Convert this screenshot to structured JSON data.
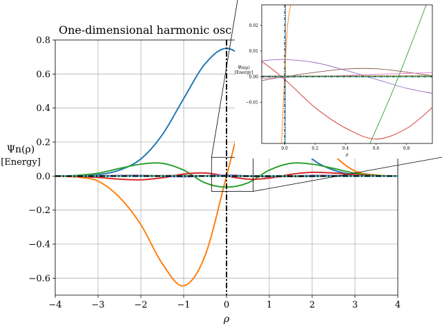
{
  "chart_data": [
    {
      "id": "main",
      "type": "line",
      "title": "One-dimensional harmonic osc",
      "xlabel": "ρ",
      "ylabel_line1": "Ψn(ρ)",
      "ylabel_line2": "[Energy]",
      "xlim": [
        -4,
        4
      ],
      "ylim": [
        -0.7,
        0.8
      ],
      "xticks": [
        -4,
        -3,
        -2,
        -1,
        0,
        1,
        2,
        3,
        4
      ],
      "xtick_labels": [
        "−4",
        "−3",
        "−2",
        "−1",
        "0",
        "1",
        "2",
        "3",
        "4"
      ],
      "yticks": [
        -0.6,
        -0.4,
        -0.2,
        0.0,
        0.2,
        0.4,
        0.6,
        0.8
      ],
      "ytick_labels": [
        "−0.6",
        "−0.4",
        "−0.2",
        "0.0",
        "0.2",
        "0.4",
        "0.6",
        "0.8"
      ],
      "grid": true,
      "colors": [
        "#1f77b4",
        "#ff7f0e",
        "#2ca02c",
        "#d62728",
        "#9467bd",
        "#8c564b",
        "#e377c2",
        "#7f7f7f",
        "#bcbd22",
        "#17becf"
      ],
      "series": [
        {
          "x": [
            -4,
            -3.5,
            -3,
            -2.5,
            -2,
            -1.5,
            -1,
            -0.5,
            0,
            0.5,
            1,
            1.5,
            2,
            2.5,
            3,
            3.5,
            4
          ],
          "y": [
            0.0,
            0.001,
            0.008,
            0.035,
            0.101,
            0.243,
            0.456,
            0.66,
            0.751,
            0.66,
            0.456,
            0.243,
            0.101,
            0.035,
            0.008,
            0.001,
            0.0
          ]
        },
        {
          "x": [
            -4,
            -3.5,
            -3,
            -2.5,
            -2,
            -1.5,
            -1,
            -0.5,
            0,
            0.5,
            1,
            1.5,
            2,
            2.5,
            3,
            3.5,
            4
          ],
          "y": [
            -0.001,
            -0.006,
            -0.03,
            -0.125,
            -0.286,
            -0.515,
            -0.645,
            -0.467,
            0.0,
            0.467,
            0.645,
            0.515,
            0.286,
            0.125,
            0.03,
            0.006,
            0.001
          ]
        },
        {
          "x": [
            -4,
            -3.5,
            -3,
            -2.5,
            -2,
            -1.5,
            -1,
            -0.5,
            0,
            0.5,
            1,
            1.5,
            2,
            2.5,
            3,
            3.5,
            4
          ],
          "y": [
            0.0,
            0.004,
            0.017,
            0.045,
            0.07,
            0.075,
            0.035,
            -0.04,
            -0.065,
            -0.04,
            0.035,
            0.075,
            0.07,
            0.045,
            0.017,
            0.004,
            0.0
          ]
        },
        {
          "x": [
            -4,
            -3.5,
            -3,
            -2.5,
            -2,
            -1.5,
            -1,
            -0.5,
            0,
            0.5,
            1,
            1.5,
            2,
            2.5,
            3,
            3.5,
            4
          ],
          "y": [
            0.0,
            -0.002,
            -0.008,
            -0.018,
            -0.022,
            -0.01,
            0.012,
            0.018,
            0.0,
            -0.018,
            -0.012,
            0.01,
            0.022,
            0.018,
            0.008,
            0.002,
            0.0
          ]
        },
        {
          "x": [
            -4,
            -3,
            -2,
            -1,
            0,
            1,
            2,
            3,
            4
          ],
          "y": [
            0.0,
            0.002,
            0.004,
            -0.004,
            0.006,
            -0.004,
            0.004,
            0.002,
            0.0
          ]
        },
        {
          "x": [
            -4,
            -3,
            -2,
            -1,
            0,
            1,
            2,
            3,
            4
          ],
          "y": [
            0.0,
            -0.001,
            0.002,
            0.003,
            0.0,
            -0.003,
            -0.002,
            0.001,
            0.0
          ]
        },
        {
          "x": [
            -4,
            4
          ],
          "y": [
            0.0,
            0.0
          ]
        },
        {
          "x": [
            -4,
            4
          ],
          "y": [
            0.0,
            0.0
          ]
        },
        {
          "x": [
            -4,
            4
          ],
          "y": [
            0.0,
            0.0
          ]
        },
        {
          "x": [
            -4,
            4
          ],
          "y": [
            0.0,
            0.0
          ]
        }
      ],
      "overlay_dashed": {
        "x": [
          -4,
          4
        ],
        "y": [
          0.0,
          0.0
        ],
        "color": "#000000",
        "style": "dashdot"
      },
      "vline_dashdot": {
        "x": 0,
        "color": "#000000"
      },
      "zoom_box": {
        "xlim": [
          -0.35,
          0.62
        ],
        "ylim": [
          -0.09,
          0.11
        ]
      }
    },
    {
      "id": "inset",
      "type": "line",
      "xlabel": "ρ",
      "ylabel_line1": "Ψn(ρ)",
      "ylabel_line2": "[Energy]",
      "xlim": [
        -0.15,
        0.97
      ],
      "ylim": [
        -0.026,
        0.028
      ],
      "xticks": [
        0.0,
        0.2,
        0.4,
        0.6,
        0.8
      ],
      "xtick_labels": [
        "0.0",
        "0.2",
        "0.4",
        "0.6",
        "0.8"
      ],
      "yticks": [
        -0.01,
        0.0,
        0.01,
        0.02
      ],
      "ytick_labels": [
        "−0.01",
        "0.00",
        "0.01",
        "0.02"
      ],
      "grid": false,
      "series": [
        {
          "color": "#1f77b4",
          "x": [
            0.004,
            0.006
          ],
          "y": [
            -0.026,
            0.028
          ]
        },
        {
          "color": "#ff7f0e",
          "x": [
            -0.02,
            0.0,
            0.02,
            0.04
          ],
          "y": [
            -0.026,
            0.0,
            0.02,
            0.028
          ]
        },
        {
          "color": "#2ca02c",
          "x": [
            0.56,
            0.7,
            0.84,
            0.93
          ],
          "y": [
            -0.026,
            -0.007,
            0.014,
            0.028
          ]
        },
        {
          "color": "#d62728",
          "x": [
            -0.15,
            0.0,
            0.2,
            0.4,
            0.6,
            0.8,
            0.97
          ],
          "y": [
            0.006,
            -0.001,
            -0.012,
            -0.02,
            -0.0243,
            -0.0202,
            -0.012
          ]
        },
        {
          "color": "#9467bd",
          "x": [
            -0.15,
            0.0,
            0.2,
            0.4,
            0.6,
            0.8,
            0.97
          ],
          "y": [
            0.0062,
            0.0067,
            0.0055,
            0.0025,
            -0.001,
            -0.0045,
            -0.0065
          ]
        },
        {
          "color": "#8c564b",
          "x": [
            -0.15,
            0.0,
            0.2,
            0.4,
            0.6,
            0.8,
            0.97
          ],
          "y": [
            -0.0015,
            0.0,
            0.0017,
            0.003,
            0.0031,
            0.0018,
            0.0004
          ]
        },
        {
          "color": "#e377c2",
          "x": [
            -0.15,
            0.0,
            0.2,
            0.4,
            0.6,
            0.8,
            0.97
          ],
          "y": [
            -0.0006,
            -0.0003,
            0.0001,
            0.0005,
            0.0009,
            0.0013,
            0.0016
          ]
        },
        {
          "color": "#7f7f7f",
          "x": [
            -0.15,
            0.97
          ],
          "y": [
            0.0003,
            0.0004
          ]
        },
        {
          "color": "#bcbd22",
          "x": [
            -0.15,
            0.97
          ],
          "y": [
            0.0001,
            0.0002
          ]
        },
        {
          "color": "#17becf",
          "x": [
            -0.15,
            0.97
          ],
          "y": [
            -0.0001,
            -0.0001
          ]
        }
      ],
      "overlay_dashed": {
        "x": [
          -0.15,
          0.97
        ],
        "y": [
          0.0,
          0.0
        ],
        "color": "#000000",
        "style": "dashdot"
      },
      "vline_dashdot": {
        "x": 0,
        "color": "#000000"
      }
    }
  ]
}
